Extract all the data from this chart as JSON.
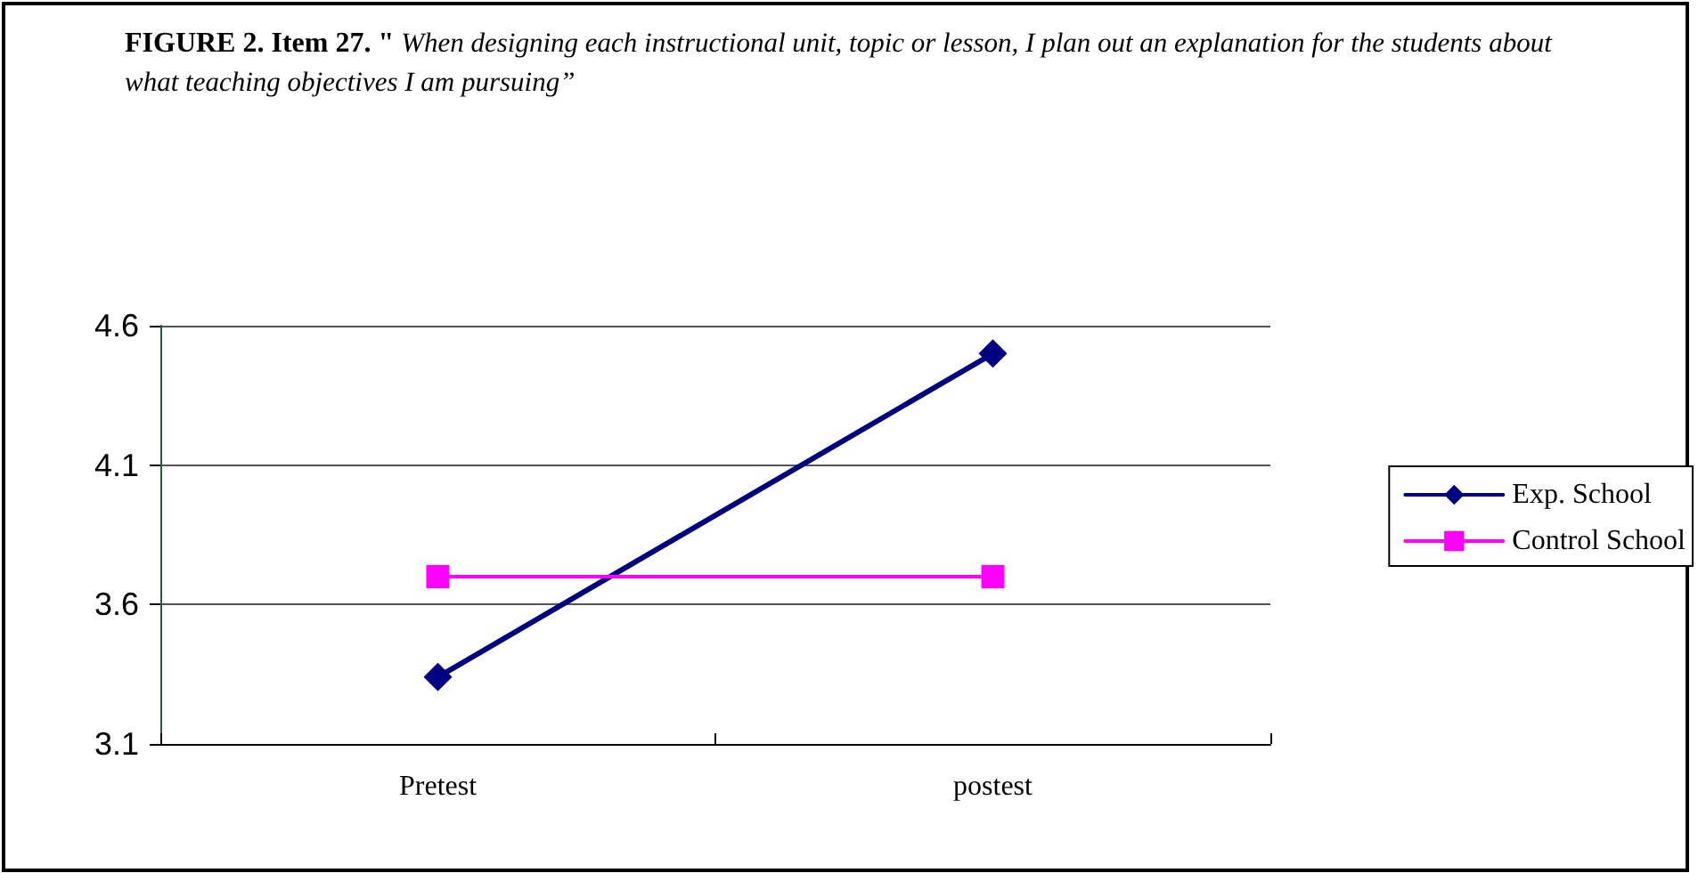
{
  "chart_data": {
    "type": "line",
    "title": "FIGURE 2. Item 27. \"",
    "subtitle": "When designing each instructional unit, topic or lesson, I plan out an explanation for the students about what teaching objectives I am pursuing”",
    "categories": [
      "Pretest",
      "postest"
    ],
    "series": [
      {
        "name": "Exp. School",
        "color": "#000080",
        "values": [
          3.34,
          4.5
        ],
        "marker": "diamond"
      },
      {
        "name": "Control School",
        "color": "#ff00ff",
        "values": [
          3.7,
          3.7
        ],
        "marker": "square"
      }
    ],
    "ylim": [
      3.1,
      4.6
    ],
    "yticks": [
      3.1,
      3.6,
      4.1,
      4.6
    ],
    "grid": "y",
    "legend": "right",
    "line_style": "solid"
  }
}
